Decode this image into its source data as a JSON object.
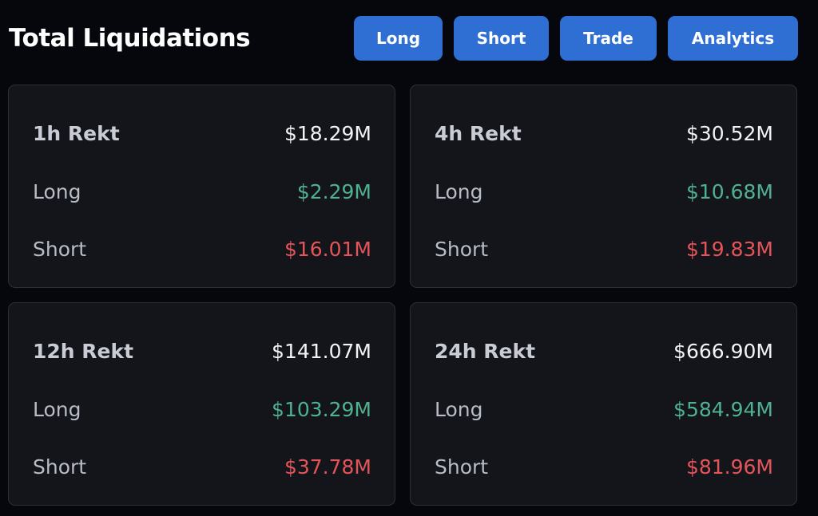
{
  "header": {
    "title": "Total Liquidations",
    "buttons": {
      "long": "Long",
      "short": "Short",
      "trade": "Trade",
      "analytics": "Analytics"
    }
  },
  "colors": {
    "accent": "#2f6fd4",
    "long": "#4fb18f",
    "short": "#e45459",
    "background": "#06070c",
    "card": "#13151b"
  },
  "cards": [
    {
      "label": "1h Rekt",
      "total": "$18.29M",
      "long_label": "Long",
      "long": "$2.29M",
      "short_label": "Short",
      "short": "$16.01M"
    },
    {
      "label": "4h Rekt",
      "total": "$30.52M",
      "long_label": "Long",
      "long": "$10.68M",
      "short_label": "Short",
      "short": "$19.83M"
    },
    {
      "label": "12h Rekt",
      "total": "$141.07M",
      "long_label": "Long",
      "long": "$103.29M",
      "short_label": "Short",
      "short": "$37.78M"
    },
    {
      "label": "24h Rekt",
      "total": "$666.90M",
      "long_label": "Long",
      "long": "$584.94M",
      "short_label": "Short",
      "short": "$81.96M"
    }
  ]
}
